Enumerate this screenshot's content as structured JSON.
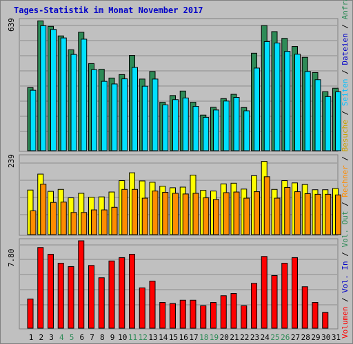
{
  "title": "Tages-Statistik im Monat November 2017",
  "colors": {
    "anfragen": "#2e8b57",
    "dateien": "#00e0ff",
    "seiten": "#00c0ff",
    "besuche": "#ffff00",
    "rechner": "#ff8c00",
    "volumen": "#ff0000",
    "weekend": "#2e8b57",
    "weekday": "#000000",
    "title": "#0000c8",
    "grid": "#8c8c8c",
    "panel_bg": "#c0c0c0"
  },
  "legend": [
    {
      "text": "Volumen",
      "color": "#ff0000"
    },
    {
      "text": " / ",
      "color": "#000000"
    },
    {
      "text": "Vol. In",
      "color": "#0000c8"
    },
    {
      "text": " / ",
      "color": "#000000"
    },
    {
      "text": "Vol. Out",
      "color": "#2e8b57"
    },
    {
      "text": " / ",
      "color": "#000000"
    },
    {
      "text": "Rechner",
      "color": "#ff8c00"
    },
    {
      "text": " / ",
      "color": "#000000"
    },
    {
      "text": "Besuche",
      "color": "#c8a000"
    },
    {
      "text": " / ",
      "color": "#000000"
    },
    {
      "text": "Seiten",
      "color": "#00c0ff"
    },
    {
      "text": " / ",
      "color": "#000000"
    },
    {
      "text": "Dateien",
      "color": "#0000c8"
    },
    {
      "text": " / ",
      "color": "#000000"
    },
    {
      "text": "Anfragen",
      "color": "#2e8b57"
    }
  ],
  "chart_data": [
    {
      "type": "bar",
      "panel": "top",
      "ymax_label": "639",
      "ylim": [
        0,
        639
      ],
      "x": [
        1,
        2,
        3,
        4,
        5,
        6,
        7,
        8,
        9,
        10,
        11,
        12,
        13,
        14,
        15,
        16,
        17,
        18,
        19,
        20,
        21,
        22,
        23,
        24,
        25,
        26,
        27,
        28,
        29,
        30,
        31
      ],
      "series": [
        {
          "key": "anfragen",
          "values": [
            310,
            638,
            611,
            564,
            496,
            582,
            428,
            400,
            357,
            374,
            468,
            352,
            389,
            238,
            271,
            293,
            238,
            175,
            213,
            256,
            277,
            212,
            479,
            615,
            585,
            552,
            512,
            459,
            384,
            290,
            307
          ]
        },
        {
          "key": "dateien",
          "values": [
            297,
            614,
            596,
            554,
            473,
            548,
            398,
            341,
            328,
            353,
            409,
            317,
            352,
            225,
            251,
            259,
            218,
            164,
            200,
            244,
            262,
            196,
            406,
            536,
            529,
            488,
            474,
            389,
            349,
            266,
            289
          ]
        }
      ]
    },
    {
      "type": "bar",
      "panel": "middle",
      "ymax_label": "239",
      "ylim": [
        0,
        239
      ],
      "x": [
        1,
        2,
        3,
        4,
        5,
        6,
        7,
        8,
        9,
        10,
        11,
        12,
        13,
        14,
        15,
        16,
        17,
        18,
        19,
        20,
        21,
        22,
        23,
        24,
        25,
        26,
        27,
        28,
        29,
        30,
        31
      ],
      "series": [
        {
          "key": "besuche",
          "values": [
            137,
            186,
            133,
            139,
            113,
            127,
            115,
            116,
            131,
            166,
            190,
            165,
            161,
            149,
            144,
            146,
            183,
            136,
            134,
            156,
            158,
            140,
            181,
            225,
            139,
            166,
            159,
            154,
            138,
            138,
            142
          ]
        },
        {
          "key": "rechner",
          "values": [
            73,
            155,
            99,
            100,
            68,
            68,
            76,
            76,
            84,
            139,
            139,
            112,
            134,
            130,
            127,
            125,
            127,
            113,
            108,
            129,
            131,
            112,
            132,
            178,
            112,
            145,
            132,
            126,
            124,
            124,
            122
          ]
        }
      ]
    },
    {
      "type": "bar",
      "panel": "bottom",
      "ymax_label": "7.80",
      "ylim": [
        0,
        7.8
      ],
      "x": [
        1,
        2,
        3,
        4,
        5,
        6,
        7,
        8,
        9,
        10,
        11,
        12,
        13,
        14,
        15,
        16,
        17,
        18,
        19,
        20,
        21,
        22,
        23,
        24,
        25,
        26,
        27,
        28,
        29,
        30,
        31
      ],
      "series": [
        {
          "key": "volumen",
          "values": [
            2.6,
            7.2,
            6.6,
            5.8,
            5.5,
            7.8,
            5.6,
            4.5,
            6.0,
            6.3,
            6.6,
            3.6,
            4.2,
            2.3,
            2.2,
            2.5,
            2.5,
            2.0,
            2.3,
            2.9,
            3.1,
            2.0,
            4.0,
            6.4,
            4.7,
            5.8,
            6.3,
            3.7,
            2.3,
            1.4,
            0
          ]
        }
      ]
    }
  ]
}
